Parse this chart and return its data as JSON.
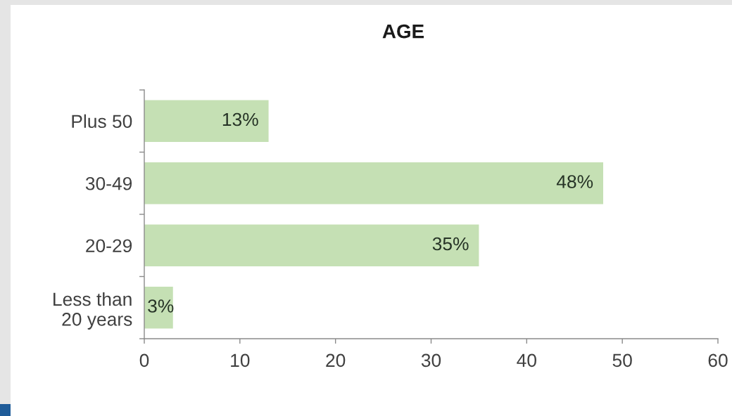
{
  "chart_data": {
    "type": "bar",
    "orientation": "horizontal",
    "title": "AGE",
    "categories": [
      "Plus 50",
      "30-49",
      "20-29",
      "Less than\n20 years"
    ],
    "values": [
      13,
      48,
      35,
      3
    ],
    "value_labels": [
      "13%",
      "48%",
      "35%",
      "3%"
    ],
    "color": "#c5e0b4",
    "xlim": [
      0,
      60
    ],
    "xticks": [
      0,
      10,
      20,
      30,
      40,
      50,
      60
    ],
    "grid": false
  }
}
